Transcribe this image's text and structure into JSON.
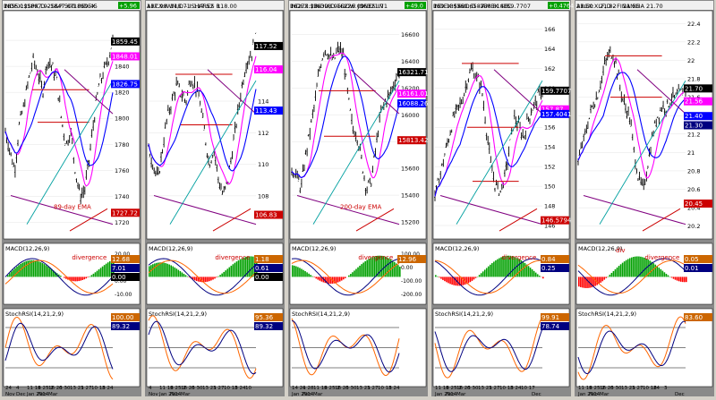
{
  "colors": {
    "frame": "#8a8a8a",
    "panel_bg": "#ffffff",
    "bar": "#000000",
    "ma_fast": "#ff00ff",
    "ma_slow": "#0000ff",
    "ma_trend": "#00a0a0",
    "resist": "#cc0000",
    "trendline": "#800080",
    "macd_line": "#000080",
    "signal_line": "#ff6600",
    "hist_pos": "#00a000",
    "hist_neg": "#ff0000",
    "stoch_k": "#ff6600",
    "stoch_d": "#000080",
    "annot": "#cc0000"
  },
  "chart_data": [
    {
      "type": "line",
      "window": "INDEX:$SPX,D - S&P 500 INDEX",
      "header_values": [
        "1855.12",
        "1867.92",
        "1847.67",
        "1859.45"
      ],
      "change_badge": "+5.96",
      "yticks": [
        1860,
        1840,
        1820,
        1800,
        1780,
        1760,
        1740,
        1720
      ],
      "ylim": [
        1710,
        1880
      ],
      "price_path": [
        1790,
        1775,
        1760,
        1795,
        1810,
        1830,
        1845,
        1835,
        1820,
        1845,
        1840,
        1830,
        1800,
        1780,
        1790,
        1760,
        1740,
        1745,
        1770,
        1800,
        1825,
        1835,
        1845,
        1860
      ],
      "levels": [
        1822,
        1797
      ],
      "price_badges": [
        "1859.45",
        "1848.01",
        "1826.75"
      ],
      "extra_badge": "1727.72",
      "annotation": "89-day EMA",
      "macd": {
        "title": "MACD(12,26,9)",
        "labels": [
          "divergence"
        ],
        "badges": [
          "12.68",
          "7.01",
          "0.00"
        ],
        "yticks": [
          "20.00",
          "10.00",
          "0.00",
          "-10.00"
        ],
        "ylim": [
          -25,
          30
        ]
      },
      "stoch": {
        "title": "StochRSI(14,21,2,9)",
        "badges": [
          "100.00",
          "89.32"
        ]
      },
      "xlabels": [
        "24",
        "4",
        "11 18 25 2",
        "9",
        "16 23 30",
        "6",
        "13 21 27",
        "3",
        "10 18 24",
        "3",
        "Nov",
        "Dec",
        "Jan 2014",
        "Feb",
        "Mar"
      ]
    },
    {
      "type": "line",
      "window": "ARCX:IWM,D - ISHARES R",
      "header_values": [
        "117.98",
        "118.71",
        "117.52",
        "118.00"
      ],
      "change_badge": "",
      "yticks": [
        116,
        114,
        112,
        110,
        108
      ],
      "ylim": [
        105.5,
        119.5
      ],
      "price_path": [
        111,
        110,
        109,
        111,
        113,
        114,
        115,
        114.5,
        114,
        115.5,
        115,
        114,
        112,
        110,
        111,
        109,
        108,
        109,
        111,
        113,
        115,
        116.5,
        117,
        118
      ],
      "levels": [
        115.7,
        112.5
      ],
      "price_badges": [
        "117.52",
        "116.04",
        "113.43"
      ],
      "extra_badge": "106.83",
      "annotation": "",
      "macd": {
        "title": "MACD(12,26,9)",
        "labels": [
          "divergence"
        ],
        "badges": [
          "1.18",
          "0.61",
          "0.00"
        ],
        "yticks": [],
        "ylim": [
          -2,
          2.4
        ]
      },
      "stoch": {
        "title": "StochRSI(14,21,2,9)",
        "badges": [
          "95.36",
          "89.32"
        ]
      },
      "xlabels": [
        "4",
        "11 18 25 2",
        "9",
        "16 23 30",
        "6",
        "13 21 27",
        "3",
        "10 18 24",
        "3",
        "10",
        "Nov",
        "Jan 2014",
        "Feb",
        "Mar"
      ]
    },
    {
      "type": "line",
      "window": "INDEX:$INDU,D - DOW JONES IN",
      "header_values": [
        "16273.23",
        "16398.95",
        "16226.09",
        "16321.71"
      ],
      "change_badge": "+49.0",
      "yticks": [
        16600,
        16400,
        16200,
        16000,
        15800,
        15600,
        15400,
        15200
      ],
      "ylim": [
        15100,
        16750
      ],
      "price_path": [
        15600,
        15550,
        15450,
        15700,
        15900,
        16100,
        16350,
        16500,
        16450,
        16400,
        16500,
        16450,
        16150,
        15900,
        15850,
        15650,
        15450,
        15500,
        15750,
        16000,
        16100,
        16150,
        16250,
        16320
      ],
      "levels": [
        16180,
        15840
      ],
      "price_badges": [
        "16321.71",
        "16161.01",
        "16088.26"
      ],
      "extra_badge": "15813.42",
      "annotation": "200-day EMA",
      "macd": {
        "title": "MACD(12,26,9)",
        "labels": [
          "divergence"
        ],
        "badges": [
          "12.96"
        ],
        "yticks": [
          "100.00",
          "0.00",
          "-100.00",
          "-200.00"
        ],
        "ylim": [
          -260,
          180
        ]
      },
      "stoch": {
        "title": "StochRSI(14,21,2,9)",
        "badges": []
      },
      "xlabels": [
        "14 21 28",
        "4",
        "11 18 25 2",
        "9",
        "16 23 30",
        "6",
        "13 21 27",
        "3",
        "10 18 24",
        "3",
        "Jan 2014",
        "Feb",
        "Mar"
      ]
    },
    {
      "type": "line",
      "window": "INDEX:$XBD,D - AMEX SEC",
      "header_values": [
        "159.1855",
        "160.6587",
        "158.8140",
        "159.7707"
      ],
      "change_badge": "+0.4764",
      "yticks": [
        166,
        164,
        162,
        160,
        158,
        156,
        154,
        152,
        150,
        148,
        146
      ],
      "ylim": [
        145,
        167.5
      ],
      "price_path": [
        149,
        151,
        153,
        155,
        157,
        158,
        159,
        161,
        162,
        161,
        160,
        156,
        152,
        150,
        149.5,
        151,
        154,
        157,
        156,
        155,
        157,
        158,
        159,
        159.8
      ],
      "levels": [
        162.5,
        156,
        150.5
      ],
      "price_badges": [
        "159.7707",
        "157.87",
        "157.4041"
      ],
      "extra_badge": "146.5794",
      "annotation": "",
      "macd": {
        "title": "MACD(12,26,9)",
        "labels": [
          "divergence"
        ],
        "badges": [
          "0.84",
          "0.25"
        ],
        "yticks": [],
        "ylim": [
          -2.5,
          2.5
        ]
      },
      "stoch": {
        "title": "StochRSI(14,21,2,9)",
        "badges": [
          "99.91",
          "78.74"
        ]
      },
      "xlabels": [
        "11 18 25 2",
        "9",
        "16 23 30",
        "6",
        "13 21 27",
        "3",
        "10 18 24",
        "3",
        "10 17",
        "Dec",
        "Jan 2014",
        "Feb",
        "Mar"
      ]
    },
    {
      "type": "line",
      "window": "ARCX:XLF,D - FINANCIA",
      "header_values": [
        "21.60",
        "21.82",
        "21.56",
        "21.70"
      ],
      "change_badge": "",
      "yticks": [
        22.4,
        22.2,
        22.0,
        21.8,
        21.6,
        21.4,
        21.2,
        21.0,
        20.8,
        20.6,
        20.4,
        20.2
      ],
      "ylim": [
        20.1,
        22.5
      ],
      "price_path": [
        20.9,
        21.1,
        21.3,
        21.5,
        21.6,
        21.8,
        22.0,
        22.1,
        22.0,
        21.7,
        21.5,
        21.4,
        21.0,
        20.7,
        20.6,
        20.9,
        21.2,
        21.4,
        21.5,
        21.5,
        21.6,
        21.6,
        21.65,
        21.7
      ],
      "levels": [
        22.05,
        21.6
      ],
      "price_badges": [
        "21.70",
        "21.56",
        "21.40",
        "21.30"
      ],
      "extra_badge": "20.45",
      "annotation": "",
      "macd": {
        "title": "MACD(12,26,9)",
        "labels": [
          "divergence",
          "div"
        ],
        "badges": [
          "0.05",
          "0.01"
        ],
        "yticks": [],
        "ylim": [
          -0.22,
          0.18
        ]
      },
      "stoch": {
        "title": "StochRSI(14,21,2,9)",
        "badges": [
          "83.60"
        ]
      },
      "xlabels": [
        "11 18 25 2",
        "9",
        "16 23 30",
        "6",
        "13 21 27",
        "3",
        "10 18",
        "24",
        "3",
        "Dec",
        "Jan 2014",
        "Feb",
        "Mar"
      ]
    }
  ]
}
